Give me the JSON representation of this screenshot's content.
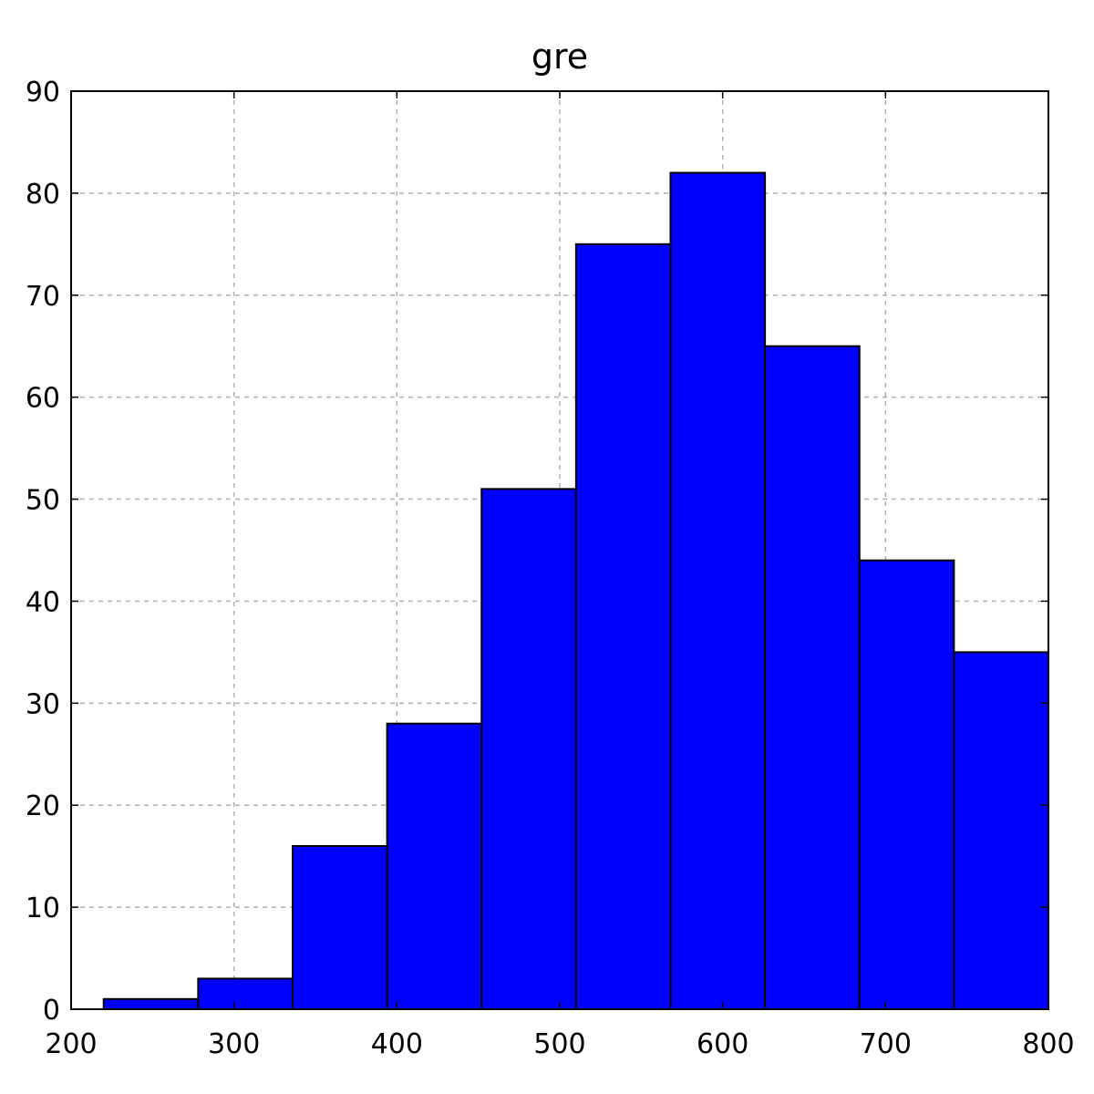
{
  "chart_data": {
    "type": "bar",
    "title": "gre",
    "xlabel": "",
    "ylabel": "",
    "xlim": [
      200,
      800
    ],
    "ylim": [
      0,
      90
    ],
    "x_ticks": [
      200,
      300,
      400,
      500,
      600,
      700,
      800
    ],
    "y_ticks": [
      0,
      10,
      20,
      30,
      40,
      50,
      60,
      70,
      80,
      90
    ],
    "grid": true,
    "bin_edges": [
      220,
      278,
      336,
      394,
      452,
      510,
      568,
      626,
      684,
      742,
      800
    ],
    "values": [
      1,
      3,
      16,
      28,
      51,
      75,
      82,
      65,
      44,
      35
    ],
    "colors": {
      "bar_fill": "#0000ff",
      "bar_edge": "#000000",
      "grid": "#b0b0b0"
    }
  }
}
